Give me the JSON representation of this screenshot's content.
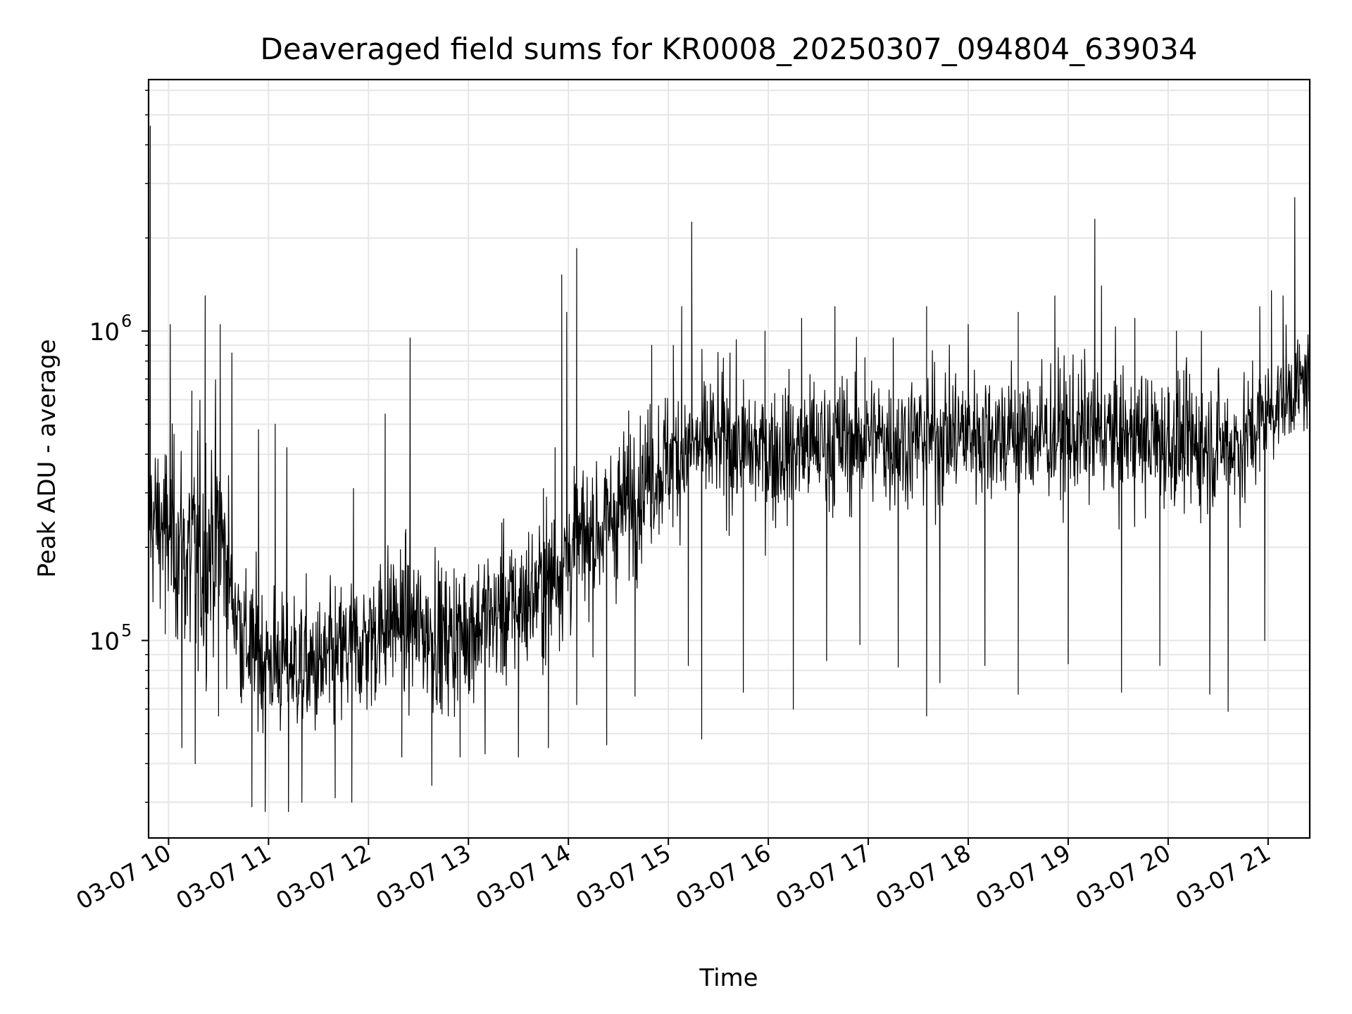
{
  "chart_data": {
    "type": "line",
    "title": "Deaveraged field sums for KR0008_20250307_094804_639034",
    "xlabel": "Time",
    "ylabel": "Peak ADU - average",
    "x_ticks": [
      "03-07 10",
      "03-07 11",
      "03-07 12",
      "03-07 13",
      "03-07 14",
      "03-07 15",
      "03-07 16",
      "03-07 17",
      "03-07 18",
      "03-07 19",
      "03-07 20",
      "03-07 21"
    ],
    "x_tick_hours": [
      10,
      11,
      12,
      13,
      14,
      15,
      16,
      17,
      18,
      19,
      20,
      21
    ],
    "xlim": [
      "2025-03-07 09:48",
      "2025-03-07 21:25"
    ],
    "y_ticks": [
      {
        "base": "10",
        "exp": "5",
        "value": 100000
      },
      {
        "base": "10",
        "exp": "6",
        "value": 1000000
      }
    ],
    "y_scale": "log",
    "ylim": [
      23000,
      6500000
    ],
    "grid": true,
    "line_color": "#000000",
    "series": [
      {
        "x": [
          "09:48",
          "10:00",
          "10:15",
          "10:30",
          "10:45",
          "11:00",
          "11:15",
          "11:30",
          "11:45",
          "12:00",
          "12:15",
          "12:30",
          "12:45",
          "13:00",
          "13:15",
          "13:30",
          "13:45",
          "14:00",
          "14:15",
          "14:30",
          "14:45",
          "15:00",
          "15:15",
          "15:30",
          "15:45",
          "16:00",
          "16:15",
          "16:30",
          "16:45",
          "17:00",
          "17:15",
          "17:30",
          "17:45",
          "18:00",
          "18:15",
          "18:30",
          "18:45",
          "19:00",
          "19:15",
          "19:30",
          "19:45",
          "20:00",
          "20:15",
          "20:30",
          "20:45",
          "21:00",
          "21:15",
          "21:25"
        ],
        "y": [
          250000,
          230000,
          170000,
          230000,
          100000,
          85000,
          85000,
          80000,
          90000,
          100000,
          120000,
          110000,
          100000,
          110000,
          120000,
          130000,
          150000,
          190000,
          220000,
          260000,
          330000,
          380000,
          420000,
          440000,
          420000,
          400000,
          420000,
          430000,
          440000,
          450000,
          440000,
          450000,
          460000,
          470000,
          470000,
          460000,
          460000,
          470000,
          470000,
          460000,
          450000,
          440000,
          430000,
          430000,
          430000,
          550000,
          650000,
          700000
        ],
        "spread": [
          0.35,
          0.35,
          0.55,
          0.45,
          0.3,
          0.3,
          0.3,
          0.3,
          0.3,
          0.3,
          0.3,
          0.3,
          0.3,
          0.3,
          0.3,
          0.3,
          0.3,
          0.32,
          0.32,
          0.32,
          0.3,
          0.28,
          0.28,
          0.28,
          0.28,
          0.28,
          0.28,
          0.28,
          0.28,
          0.28,
          0.28,
          0.28,
          0.28,
          0.28,
          0.28,
          0.28,
          0.28,
          0.28,
          0.28,
          0.28,
          0.28,
          0.28,
          0.28,
          0.28,
          0.28,
          0.22,
          0.2,
          0.2
        ]
      }
    ],
    "spikes": [
      {
        "t": "09:49",
        "y": 4600000
      },
      {
        "t": "10:01",
        "y": 1050000
      },
      {
        "t": "10:14",
        "y": 640000
      },
      {
        "t": "10:22",
        "y": 1300000
      },
      {
        "t": "10:31",
        "y": 1050000
      },
      {
        "t": "10:38",
        "y": 850000
      },
      {
        "t": "10:54",
        "y": 480000
      },
      {
        "t": "11:04",
        "y": 500000
      },
      {
        "t": "11:11",
        "y": 420000
      },
      {
        "t": "11:51",
        "y": 310000
      },
      {
        "t": "12:10",
        "y": 540000
      },
      {
        "t": "12:25",
        "y": 950000
      },
      {
        "t": "12:40",
        "y": 200000
      },
      {
        "t": "13:20",
        "y": 240000
      },
      {
        "t": "13:45",
        "y": 310000
      },
      {
        "t": "13:52",
        "y": 420000
      },
      {
        "t": "13:56",
        "y": 1520000
      },
      {
        "t": "13:59",
        "y": 1150000
      },
      {
        "t": "14:05",
        "y": 1850000
      },
      {
        "t": "14:30",
        "y": 380000
      },
      {
        "t": "14:50",
        "y": 900000
      },
      {
        "t": "15:03",
        "y": 900000
      },
      {
        "t": "15:08",
        "y": 1200000
      },
      {
        "t": "15:14",
        "y": 2250000
      },
      {
        "t": "15:37",
        "y": 850000
      },
      {
        "t": "15:58",
        "y": 1000000
      },
      {
        "t": "16:20",
        "y": 1100000
      },
      {
        "t": "16:40",
        "y": 1200000
      },
      {
        "t": "16:58",
        "y": 820000
      },
      {
        "t": "17:15",
        "y": 950000
      },
      {
        "t": "17:35",
        "y": 1200000
      },
      {
        "t": "18:00",
        "y": 1050000
      },
      {
        "t": "18:30",
        "y": 1150000
      },
      {
        "t": "18:52",
        "y": 1300000
      },
      {
        "t": "19:16",
        "y": 2300000
      },
      {
        "t": "19:20",
        "y": 1400000
      },
      {
        "t": "19:40",
        "y": 1100000
      },
      {
        "t": "20:05",
        "y": 1000000
      },
      {
        "t": "20:20",
        "y": 1000000
      },
      {
        "t": "20:55",
        "y": 1200000
      },
      {
        "t": "21:02",
        "y": 1350000
      },
      {
        "t": "21:09",
        "y": 1300000
      },
      {
        "t": "21:16",
        "y": 2700000
      }
    ],
    "dips": [
      {
        "t": "09:58",
        "y": 105000
      },
      {
        "t": "10:08",
        "y": 45000
      },
      {
        "t": "10:16",
        "y": 40000
      },
      {
        "t": "10:30",
        "y": 57000
      },
      {
        "t": "10:50",
        "y": 29000
      },
      {
        "t": "10:58",
        "y": 28000
      },
      {
        "t": "11:12",
        "y": 28000
      },
      {
        "t": "11:20",
        "y": 30000
      },
      {
        "t": "11:40",
        "y": 31000
      },
      {
        "t": "11:50",
        "y": 30000
      },
      {
        "t": "12:20",
        "y": 42000
      },
      {
        "t": "12:38",
        "y": 34000
      },
      {
        "t": "12:55",
        "y": 42000
      },
      {
        "t": "13:10",
        "y": 43000
      },
      {
        "t": "13:30",
        "y": 42000
      },
      {
        "t": "13:48",
        "y": 45000
      },
      {
        "t": "14:05",
        "y": 62000
      },
      {
        "t": "14:23",
        "y": 46000
      },
      {
        "t": "14:40",
        "y": 66000
      },
      {
        "t": "15:12",
        "y": 83000
      },
      {
        "t": "15:20",
        "y": 48000
      },
      {
        "t": "15:45",
        "y": 68000
      },
      {
        "t": "16:15",
        "y": 60000
      },
      {
        "t": "16:35",
        "y": 86000
      },
      {
        "t": "16:55",
        "y": 97000
      },
      {
        "t": "17:18",
        "y": 82000
      },
      {
        "t": "17:35",
        "y": 57000
      },
      {
        "t": "17:43",
        "y": 73000
      },
      {
        "t": "18:10",
        "y": 83000
      },
      {
        "t": "18:30",
        "y": 67000
      },
      {
        "t": "19:00",
        "y": 84000
      },
      {
        "t": "19:32",
        "y": 68000
      },
      {
        "t": "19:55",
        "y": 83000
      },
      {
        "t": "20:25",
        "y": 67000
      },
      {
        "t": "20:36",
        "y": 59000
      },
      {
        "t": "20:58",
        "y": 100000
      }
    ]
  }
}
